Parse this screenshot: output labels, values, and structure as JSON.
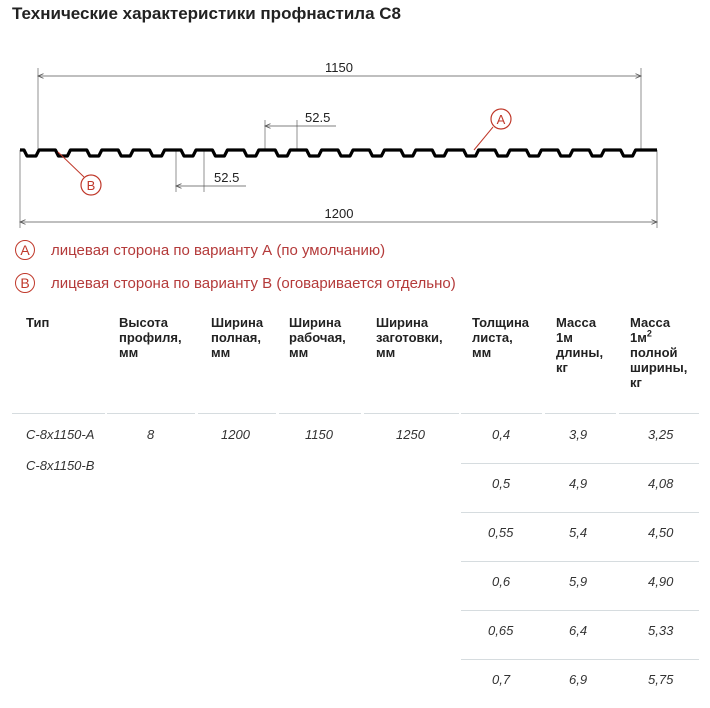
{
  "title": "Технические характеристики профнастила С8",
  "drawing": {
    "dim_top_total": "1150",
    "dim_top_pitch": "52.5",
    "dim_bottom_pitch": "52.5",
    "dim_bottom_total": "1200",
    "marker_a": "A",
    "marker_b": "B",
    "color_line": "#000000",
    "color_marker": "#c0392b"
  },
  "legend": [
    {
      "marker": "A",
      "text": "лицевая сторона по варианту А (по умолчанию)"
    },
    {
      "marker": "B",
      "text": "лицевая сторона по варианту В (оговаривается отдельно)"
    }
  ],
  "table": {
    "headers": {
      "type": "Тип",
      "height": [
        "Высота",
        "профиля,",
        "мм"
      ],
      "width_full": [
        "Ширина",
        "полная,",
        "мм"
      ],
      "width_work": [
        "Ширина",
        "рабочая,",
        "мм"
      ],
      "width_blank": [
        "Ширина",
        "заготовки,",
        "мм"
      ],
      "thickness": [
        "Толщина",
        "листа,",
        "мм"
      ],
      "mass_len": [
        "Масса",
        "1м",
        "длины,",
        "кг"
      ],
      "mass_area": [
        "Масса",
        "1м",
        "2",
        "полной",
        "ширины,",
        "кг"
      ]
    },
    "types": [
      "С-8х1150-А",
      "С-8х1150-В"
    ],
    "height_value": "8",
    "width_full_value": "1200",
    "width_work_value": "1150",
    "width_blank_value": "1250",
    "rows": [
      {
        "thickness": "0,4",
        "mass_len": "3,9",
        "mass_area": "3,25"
      },
      {
        "thickness": "0,5",
        "mass_len": "4,9",
        "mass_area": "4,08"
      },
      {
        "thickness": "0,55",
        "mass_len": "5,4",
        "mass_area": "4,50"
      },
      {
        "thickness": "0,6",
        "mass_len": "5,9",
        "mass_area": "4,90"
      },
      {
        "thickness": "0,65",
        "mass_len": "6,4",
        "mass_area": "5,33"
      },
      {
        "thickness": "0,7",
        "mass_len": "6,9",
        "mass_area": "5,75"
      }
    ]
  }
}
